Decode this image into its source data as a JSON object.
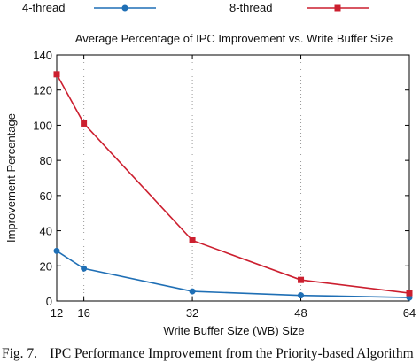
{
  "chart_data": {
    "type": "line",
    "title": "Average Percentage of IPC Improvement vs. Write Buffer Size",
    "xlabel": "Write Buffer Size (WB) Size",
    "ylabel": "Improvement Percentage",
    "x": [
      12,
      16,
      32,
      48,
      64
    ],
    "xticks": [
      "12",
      "16",
      "32",
      "48",
      "64"
    ],
    "xlim": [
      12,
      64
    ],
    "ylim": [
      0,
      140
    ],
    "yticks": [
      "0",
      "20",
      "40",
      "60",
      "80",
      "100",
      "120",
      "140"
    ],
    "grid": "dotted vertical at x ticks",
    "legend_position": "top",
    "series": [
      {
        "name": "4-thread",
        "color": "#1f6fb5",
        "marker": "circle",
        "values": [
          28.5,
          18.5,
          5.5,
          3.2,
          2.0
        ]
      },
      {
        "name": "8-thread",
        "color": "#cc1f2f",
        "marker": "square",
        "values": [
          129,
          101,
          34.5,
          12,
          4.5
        ]
      }
    ]
  },
  "caption": {
    "label": "Fig. 7.",
    "text": "IPC Performance Improvement from the Priority-based Algorithm"
  }
}
